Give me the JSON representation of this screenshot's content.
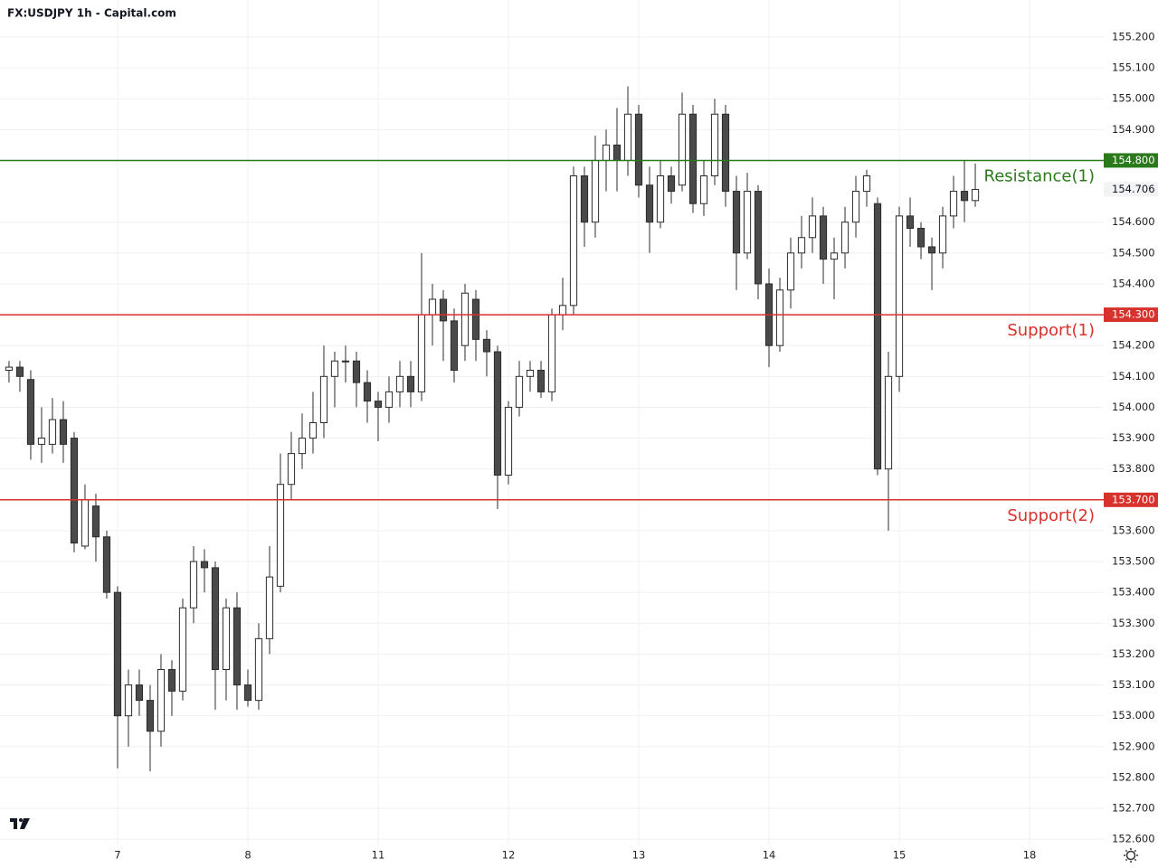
{
  "chart_data": {
    "type": "candlestick",
    "title": "FX:USDJPY 1h - Capital.com",
    "x": [
      -10,
      -9,
      -8,
      -7,
      -6,
      -5,
      -4,
      -3,
      -2,
      -1,
      0,
      1,
      2,
      3,
      4,
      5,
      6,
      7,
      8,
      9,
      10,
      11,
      12,
      13,
      14,
      15,
      16,
      17,
      18,
      19,
      20,
      21,
      22,
      23,
      24,
      25,
      26,
      27,
      28,
      29,
      30,
      31,
      32,
      33,
      34,
      35,
      36,
      37,
      38,
      39,
      40,
      41,
      42,
      43,
      44,
      45,
      46,
      47,
      48,
      49,
      50,
      51,
      52,
      53,
      54,
      55,
      56,
      57,
      58,
      59,
      60,
      61,
      62,
      63,
      64,
      65,
      66,
      67,
      68,
      69,
      70,
      71,
      72,
      73,
      74,
      75,
      76,
      77,
      78,
      79
    ],
    "open": [
      154.12,
      154.13,
      154.09,
      153.88,
      153.88,
      153.96,
      153.9,
      153.55,
      153.68,
      153.58,
      153.4,
      153.0,
      153.1,
      153.05,
      152.95,
      153.15,
      153.08,
      153.35,
      153.5,
      153.48,
      153.15,
      153.35,
      153.1,
      153.05,
      153.25,
      153.42,
      153.75,
      153.85,
      153.9,
      153.95,
      154.1,
      154.15,
      154.15,
      154.08,
      154.02,
      154.0,
      154.05,
      154.1,
      154.05,
      154.3,
      154.35,
      154.28,
      154.2,
      154.35,
      154.22,
      154.18,
      153.78,
      154.0,
      154.1,
      154.12,
      154.05,
      154.3,
      154.33,
      154.75,
      154.6,
      154.8,
      154.85,
      154.8,
      154.95,
      154.72,
      154.6,
      154.75,
      154.72,
      154.95,
      154.66,
      154.75,
      154.95,
      154.7,
      154.5,
      154.7,
      154.4,
      154.2,
      154.38,
      154.5,
      154.55,
      154.62,
      154.48,
      154.5,
      154.6,
      154.7,
      154.66,
      153.8,
      154.1,
      154.62,
      154.58,
      154.52,
      154.5,
      154.62,
      154.7,
      154.67
    ],
    "high": [
      154.15,
      154.15,
      154.12,
      154.0,
      154.03,
      154.02,
      153.92,
      153.75,
      153.72,
      153.6,
      153.42,
      153.15,
      153.15,
      153.1,
      153.2,
      153.18,
      153.38,
      153.55,
      153.54,
      153.5,
      153.38,
      153.4,
      153.15,
      153.3,
      153.55,
      153.85,
      153.92,
      153.98,
      154.05,
      154.2,
      154.18,
      154.2,
      154.18,
      154.12,
      154.05,
      154.1,
      154.15,
      154.15,
      154.5,
      154.4,
      154.38,
      154.32,
      154.4,
      154.38,
      154.25,
      154.2,
      154.02,
      154.15,
      154.15,
      154.15,
      154.32,
      154.42,
      154.78,
      154.78,
      154.88,
      154.9,
      154.97,
      155.04,
      154.98,
      154.78,
      154.8,
      154.78,
      155.02,
      154.98,
      154.8,
      155.0,
      154.98,
      154.75,
      154.76,
      154.72,
      154.45,
      154.42,
      154.55,
      154.62,
      154.68,
      154.65,
      154.55,
      154.65,
      154.75,
      154.77,
      154.68,
      154.18,
      154.65,
      154.68,
      154.6,
      154.55,
      154.65,
      154.75,
      154.8,
      154.79
    ],
    "low": [
      154.08,
      154.05,
      153.83,
      153.82,
      153.85,
      153.82,
      153.53,
      153.54,
      153.5,
      153.38,
      152.83,
      152.9,
      153.0,
      152.82,
      152.9,
      153.0,
      153.05,
      153.3,
      153.4,
      153.02,
      153.05,
      153.02,
      153.03,
      153.02,
      153.2,
      153.4,
      153.7,
      153.8,
      153.85,
      153.9,
      154.0,
      154.08,
      154.0,
      153.95,
      153.89,
      153.95,
      154.0,
      154.0,
      154.02,
      154.2,
      154.15,
      154.08,
      154.15,
      154.15,
      154.1,
      153.67,
      153.75,
      153.97,
      154.05,
      154.03,
      154.02,
      154.25,
      154.3,
      154.52,
      154.55,
      154.7,
      154.7,
      154.75,
      154.68,
      154.5,
      154.58,
      154.66,
      154.7,
      154.63,
      154.62,
      154.72,
      154.65,
      154.38,
      154.48,
      154.35,
      154.13,
      154.18,
      154.32,
      154.45,
      154.5,
      154.4,
      154.35,
      154.45,
      154.55,
      154.65,
      153.78,
      153.6,
      154.05,
      154.52,
      154.48,
      154.38,
      154.45,
      154.58,
      154.6,
      154.65
    ],
    "close": [
      154.13,
      154.1,
      153.88,
      153.9,
      153.96,
      153.88,
      153.56,
      153.7,
      153.58,
      153.4,
      153.0,
      153.1,
      153.05,
      152.95,
      153.15,
      153.08,
      153.35,
      153.5,
      153.48,
      153.15,
      153.35,
      153.1,
      153.05,
      153.25,
      153.45,
      153.75,
      153.85,
      153.9,
      153.95,
      154.1,
      154.15,
      154.15,
      154.08,
      154.02,
      154.0,
      154.05,
      154.1,
      154.05,
      154.3,
      154.35,
      154.28,
      154.12,
      154.37,
      154.22,
      154.18,
      153.78,
      154.0,
      154.1,
      154.12,
      154.05,
      154.3,
      154.33,
      154.75,
      154.6,
      154.8,
      154.85,
      154.8,
      154.95,
      154.72,
      154.6,
      154.75,
      154.7,
      154.95,
      154.66,
      154.75,
      154.95,
      154.7,
      154.5,
      154.7,
      154.4,
      154.2,
      154.38,
      154.5,
      154.55,
      154.62,
      154.48,
      154.5,
      154.6,
      154.7,
      154.75,
      153.8,
      154.1,
      154.62,
      154.58,
      154.52,
      154.5,
      154.62,
      154.7,
      154.67,
      154.706
    ],
    "up_color": "#ffffff",
    "down_color": "#4a4a4a",
    "outline_color": "#2b2b2b",
    "xlim": [
      -10.83,
      90.83
    ],
    "xticks": [
      {
        "value": 0,
        "label": "7"
      },
      {
        "value": 12,
        "label": "8"
      },
      {
        "value": 24,
        "label": "11"
      },
      {
        "value": 36,
        "label": "12"
      },
      {
        "value": 48,
        "label": "13"
      },
      {
        "value": 60,
        "label": "14"
      },
      {
        "value": 72,
        "label": "15"
      },
      {
        "value": 84,
        "label": "18"
      }
    ],
    "ylim": [
      152.58,
      155.32
    ],
    "yticks": [
      {
        "value": 152.6,
        "label": "152.600"
      },
      {
        "value": 152.7,
        "label": "152.700"
      },
      {
        "value": 152.8,
        "label": "152.800"
      },
      {
        "value": 152.9,
        "label": "152.900"
      },
      {
        "value": 153.0,
        "label": "153.000"
      },
      {
        "value": 153.1,
        "label": "153.100"
      },
      {
        "value": 153.2,
        "label": "153.200"
      },
      {
        "value": 153.3,
        "label": "153.300"
      },
      {
        "value": 153.4,
        "label": "153.400"
      },
      {
        "value": 153.5,
        "label": "153.500"
      },
      {
        "value": 153.6,
        "label": "153.600"
      },
      {
        "value": 153.8,
        "label": "153.800"
      },
      {
        "value": 153.9,
        "label": "153.900"
      },
      {
        "value": 154.0,
        "label": "154.000"
      },
      {
        "value": 154.1,
        "label": "154.100"
      },
      {
        "value": 154.2,
        "label": "154.200"
      },
      {
        "value": 154.4,
        "label": "154.400"
      },
      {
        "value": 154.5,
        "label": "154.500"
      },
      {
        "value": 154.6,
        "label": "154.600"
      },
      {
        "value": 154.9,
        "label": "154.900"
      },
      {
        "value": 155.0,
        "label": "155.000"
      },
      {
        "value": 155.1,
        "label": "155.100"
      },
      {
        "value": 155.2,
        "label": "155.200"
      }
    ],
    "grid": true,
    "levels": [
      {
        "name": "Resistance(1)",
        "value": 154.8,
        "label": "154.800",
        "color": "#2a7a1c"
      },
      {
        "name": "Support(1)",
        "value": 154.3,
        "label": "154.300",
        "color": "#d8322c"
      },
      {
        "name": "Support(2)",
        "value": 153.7,
        "label": "153.700",
        "color": "#d8322c"
      }
    ]
  }
}
